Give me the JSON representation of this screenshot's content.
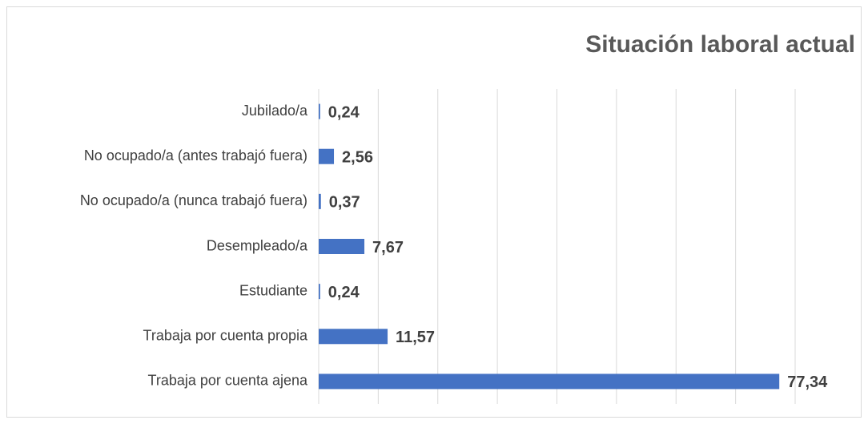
{
  "chart_data": {
    "type": "hbar",
    "title": "Situación laboral actual",
    "categories": [
      "Jubilado/a",
      "No ocupado/a (antes trabajó fuera)",
      "No ocupado/a (nunca trabajó fuera)",
      "Desempleado/a",
      "Estudiante",
      "Trabaja por cuenta propia",
      "Trabaja por cuenta ajena"
    ],
    "values": [
      0.24,
      2.56,
      0.37,
      7.67,
      0.24,
      11.57,
      77.34
    ],
    "value_labels": [
      "0,24",
      "2,56",
      "0,37",
      "7,67",
      "0,24",
      "11,57",
      "77,34"
    ],
    "color": "#4472c4",
    "xlim": [
      0,
      80
    ],
    "xticks": [
      0,
      10,
      20,
      30,
      40,
      50,
      60,
      70,
      80
    ],
    "grid": true
  }
}
